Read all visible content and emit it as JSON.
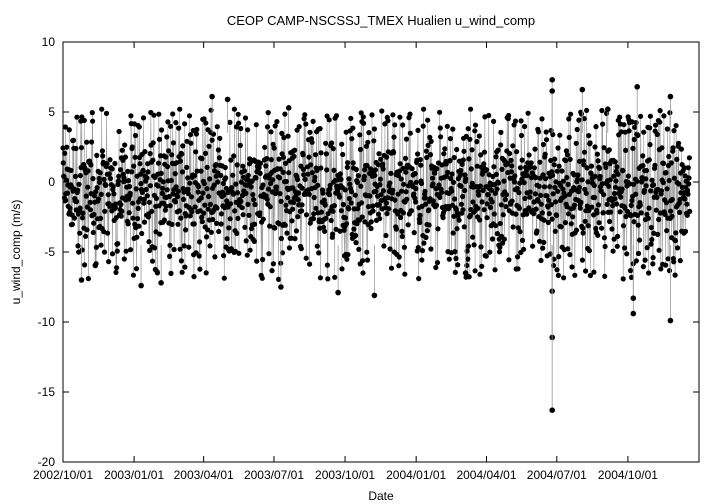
{
  "chart_data": {
    "type": "scatter",
    "title": "CEOP CAMP-NSCSSJ_TMEX Hualien  u_wind_comp",
    "xlabel": "Date",
    "ylabel": "u_wind_comp (m/s)",
    "ylim": [
      -20,
      10
    ],
    "yticks": [
      10,
      5,
      0,
      -5,
      -10,
      -15,
      -20
    ],
    "xlim": [
      "2002-10-01",
      "2005-01-01"
    ],
    "xticks": [
      "2002/10/01",
      "2003/01/01",
      "2003/04/01",
      "2003/07/01",
      "2003/10/01",
      "2004/01/01",
      "2004/04/01",
      "2004/07/01",
      "2004/10/01"
    ],
    "grid": false,
    "legend": "none",
    "series_color": "#000000",
    "connector_color": "#999999",
    "typical_range": [
      -4.5,
      3.5
    ],
    "outliers": [
      {
        "x": "2003-04-12",
        "y": 6.1
      },
      {
        "x": "2003-05-02",
        "y": 5.9
      },
      {
        "x": "2003-07-10",
        "y": -7.5
      },
      {
        "x": "2003-09-22",
        "y": -7.9
      },
      {
        "x": "2003-11-08",
        "y": -8.1
      },
      {
        "x": "2004-06-25",
        "y": 7.3
      },
      {
        "x": "2004-06-25",
        "y": 6.5
      },
      {
        "x": "2004-06-25",
        "y": -7.8
      },
      {
        "x": "2004-06-25",
        "y": -11.1
      },
      {
        "x": "2004-06-25",
        "y": -16.3
      },
      {
        "x": "2004-08-03",
        "y": 6.6
      },
      {
        "x": "2004-09-05",
        "y": 5.2
      },
      {
        "x": "2004-10-08",
        "y": -9.4
      },
      {
        "x": "2004-10-08",
        "y": -8.3
      },
      {
        "x": "2004-10-13",
        "y": 6.8
      },
      {
        "x": "2004-11-25",
        "y": 6.1
      },
      {
        "x": "2004-11-25",
        "y": -9.9
      },
      {
        "x": "2002-10-25",
        "y": -7.0
      },
      {
        "x": "2003-01-10",
        "y": -7.4
      },
      {
        "x": "2003-02-05",
        "y": -7.2
      },
      {
        "x": "2003-07-20",
        "y": 5.3
      },
      {
        "x": "2004-03-05",
        "y": -6.5
      }
    ]
  }
}
